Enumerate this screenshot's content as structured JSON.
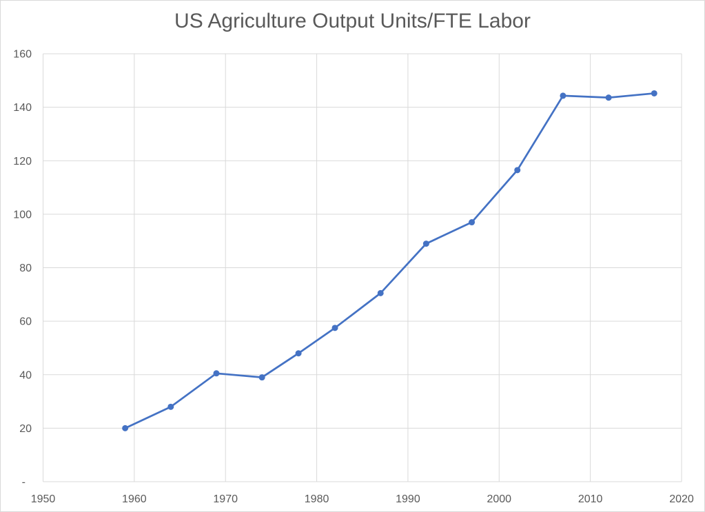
{
  "chart_data": {
    "type": "line",
    "title": "US Agriculture Output Units/FTE Labor",
    "x": [
      1959,
      1964,
      1969,
      1974,
      1978,
      1982,
      1987,
      1992,
      1997,
      2002,
      2007,
      2012,
      2017
    ],
    "values": [
      20,
      28,
      40.5,
      39,
      48,
      57.5,
      70.5,
      89,
      97,
      116.5,
      144.3,
      143.6,
      145.2
    ],
    "xlabel": "",
    "ylabel": "",
    "xlim": [
      1950,
      2020
    ],
    "ylim": [
      0,
      160
    ],
    "x_ticks": [
      1950,
      1960,
      1970,
      1980,
      1990,
      2000,
      2010,
      2020
    ],
    "y_ticks": [
      {
        "value": 0,
        "label": "-"
      },
      {
        "value": 20,
        "label": "20"
      },
      {
        "value": 40,
        "label": "40"
      },
      {
        "value": 60,
        "label": "60"
      },
      {
        "value": 80,
        "label": "80"
      },
      {
        "value": 100,
        "label": "100"
      },
      {
        "value": 120,
        "label": "120"
      },
      {
        "value": 140,
        "label": "140"
      },
      {
        "value": 160,
        "label": "160"
      }
    ],
    "grid": true,
    "legend": false,
    "marker": "circle",
    "colors": {
      "line": "#4472C4",
      "marker": "#4472C4",
      "grid": "#D9D9D9",
      "axis": "#D2D2D2",
      "tick_text": "#595959",
      "title_text": "#595959",
      "chart_border": "#D9D9D9",
      "background": "#FFFFFF"
    }
  }
}
